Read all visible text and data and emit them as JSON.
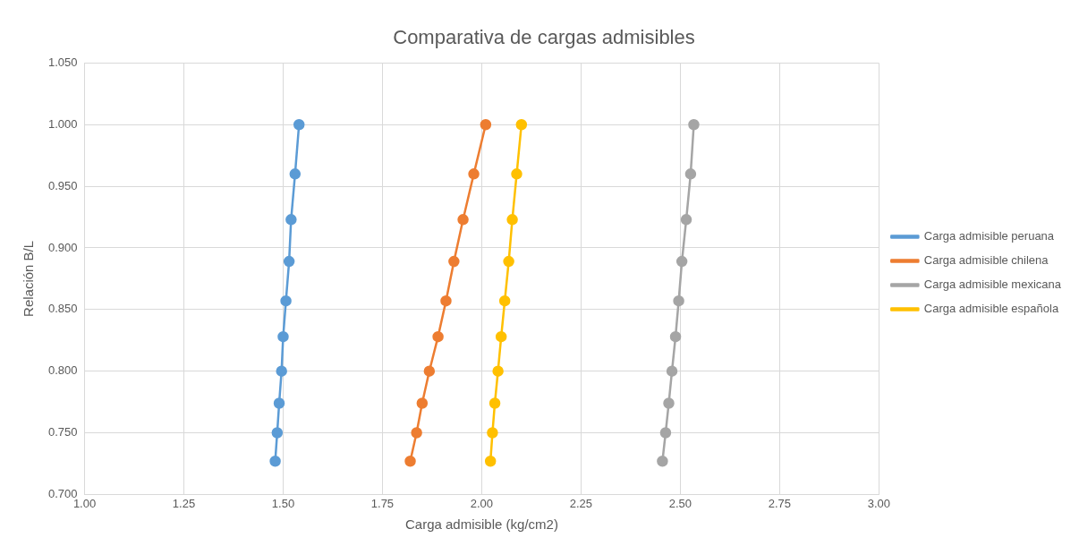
{
  "chart_data": {
    "type": "line",
    "title": "Comparativa de cargas admisibles",
    "xlabel": "Carga admisible (kg/cm2)",
    "ylabel": "Relación B/L",
    "xlim": [
      1,
      3
    ],
    "xticks": [
      {
        "value": 1,
        "label": "1.00"
      },
      {
        "value": 1.25,
        "label": "1.25"
      },
      {
        "value": 1.5,
        "label": "1.50"
      },
      {
        "value": 1.75,
        "label": "1.75"
      },
      {
        "value": 2,
        "label": "2.00"
      },
      {
        "value": 2.25,
        "label": "2.25"
      },
      {
        "value": 2.5,
        "label": "2.50"
      },
      {
        "value": 2.75,
        "label": "2.75"
      },
      {
        "value": 3,
        "label": "3.00"
      }
    ],
    "ylim": [
      0.7,
      1.05
    ],
    "yticks": [
      {
        "value": 0.7,
        "label": "0.700"
      },
      {
        "value": 0.75,
        "label": "0.750"
      },
      {
        "value": 0.8,
        "label": "0.800"
      },
      {
        "value": 0.85,
        "label": "0.850"
      },
      {
        "value": 0.9,
        "label": "0.900"
      },
      {
        "value": 0.95,
        "label": "0.950"
      },
      {
        "value": 1,
        "label": "1.000"
      },
      {
        "value": 1.05,
        "label": "1.050"
      }
    ],
    "grid": true,
    "legend": "right",
    "marker": "circle",
    "line_style": "solid",
    "series": [
      {
        "name": "Carga admisible peruana",
        "color": "#5b9bd5",
        "x": [
          1.54,
          1.53,
          1.52,
          1.515,
          1.507,
          1.5,
          1.496,
          1.49,
          1.485,
          1.48
        ],
        "values": [
          1.0,
          0.96,
          0.923,
          0.889,
          0.857,
          0.828,
          0.8,
          0.774,
          0.75,
          0.727
        ]
      },
      {
        "name": "Carga admisible chilena",
        "color": "#ed7d31",
        "x": [
          2.01,
          1.98,
          1.953,
          1.93,
          1.91,
          1.89,
          1.868,
          1.85,
          1.836,
          1.82
        ],
        "values": [
          1.0,
          0.96,
          0.923,
          0.889,
          0.857,
          0.828,
          0.8,
          0.774,
          0.75,
          0.727
        ]
      },
      {
        "name": "Carga admisible mexicana",
        "color": "#a5a5a5",
        "x": [
          2.534,
          2.526,
          2.515,
          2.504,
          2.496,
          2.488,
          2.479,
          2.471,
          2.463,
          2.455
        ],
        "values": [
          1.0,
          0.96,
          0.923,
          0.889,
          0.857,
          0.828,
          0.8,
          0.774,
          0.75,
          0.727
        ]
      },
      {
        "name": "Carga admisible española",
        "color": "#ffc000",
        "x": [
          2.1,
          2.088,
          2.077,
          2.068,
          2.058,
          2.049,
          2.041,
          2.033,
          2.027,
          2.022
        ],
        "values": [
          1.0,
          0.96,
          0.923,
          0.889,
          0.857,
          0.828,
          0.8,
          0.774,
          0.75,
          0.727
        ]
      }
    ]
  }
}
